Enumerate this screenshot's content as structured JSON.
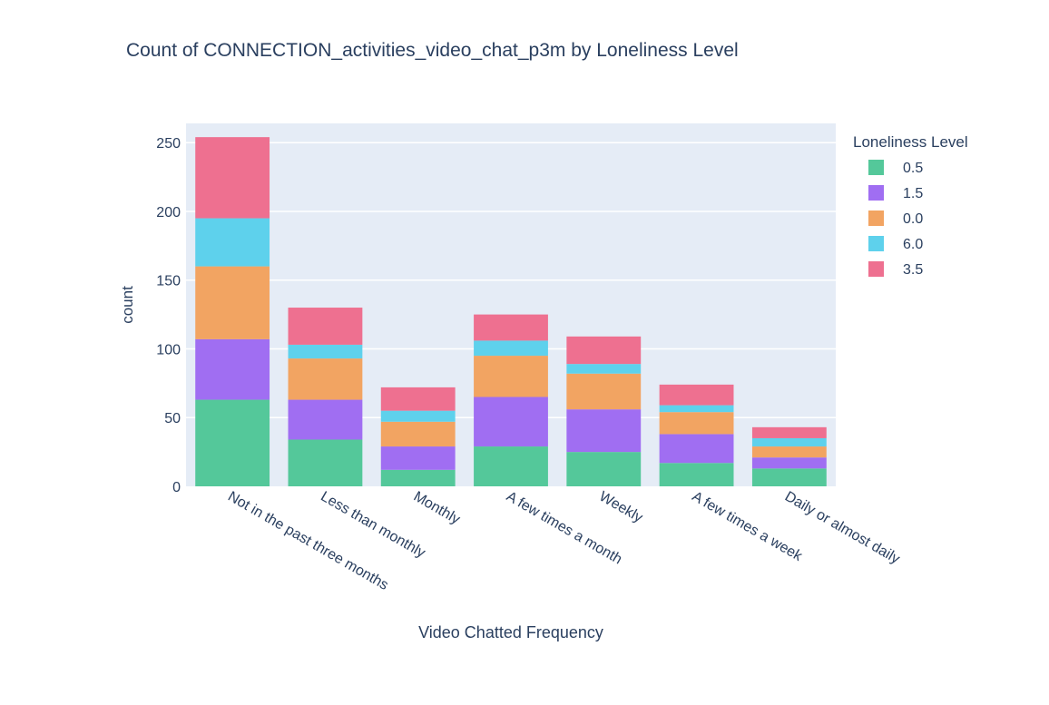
{
  "chart_data": {
    "type": "bar",
    "barmode": "stack",
    "title": "Count of CONNECTION_activities_video_chat_p3m by Loneliness Level",
    "xlabel": "Video Chatted Frequency",
    "ylabel": "count",
    "ylim": [
      0,
      264
    ],
    "yticks": [
      0,
      50,
      100,
      150,
      200,
      250
    ],
    "grid": true,
    "legend_title": "Loneliness Level",
    "legend_position": "top-right",
    "categories": [
      "Not in the past three months",
      "Less than monthly",
      "Monthly",
      "A few times a month",
      "Weekly",
      "A few times a week",
      "Daily or almost daily"
    ],
    "series": [
      {
        "name": "0.5",
        "color": "#54C89A",
        "values": [
          63,
          34,
          12,
          29,
          25,
          17,
          13
        ]
      },
      {
        "name": "1.5",
        "color": "#A06EF2",
        "values": [
          44,
          29,
          17,
          36,
          31,
          21,
          8
        ]
      },
      {
        "name": "0.0",
        "color": "#F2A462",
        "values": [
          53,
          30,
          18,
          30,
          26,
          16,
          8
        ]
      },
      {
        "name": "6.0",
        "color": "#5ED1EC",
        "values": [
          35,
          10,
          8,
          11,
          7,
          5,
          6
        ]
      },
      {
        "name": "3.5",
        "color": "#EE7090",
        "values": [
          59,
          27,
          17,
          19,
          20,
          15,
          8
        ]
      }
    ]
  }
}
